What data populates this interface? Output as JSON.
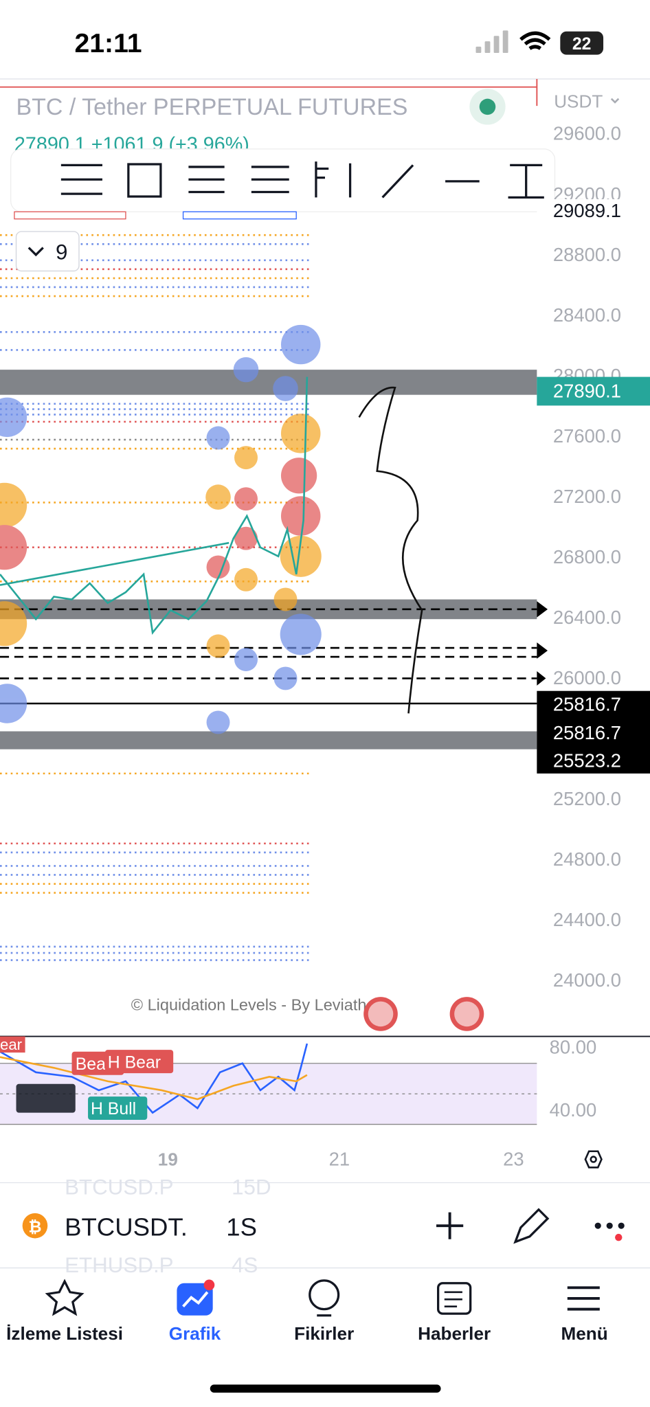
{
  "status_bar": {
    "time": "21:11",
    "battery": "22"
  },
  "header": {
    "title": "BTC / Tether PERPETUAL FUTURES",
    "quote": "27890.1 +1061.9 (+3.96%)",
    "currency": "USDT",
    "indicator_count": "9"
  },
  "price_axis": [
    {
      "value": 29600,
      "label": "29600.0"
    },
    {
      "value": 29200,
      "label": "29200.0"
    },
    {
      "value": 28800,
      "label": "28800.0"
    },
    {
      "value": 28400,
      "label": "28400.0"
    },
    {
      "value": 28000,
      "label": "28000.0"
    },
    {
      "value": 27600,
      "label": "27600.0"
    },
    {
      "value": 27200,
      "label": "27200.0"
    },
    {
      "value": 26800,
      "label": "26800.0"
    },
    {
      "value": 26400,
      "label": "26400.0"
    },
    {
      "value": 26000,
      "label": "26000.0"
    },
    {
      "value": 25200,
      "label": "25200.0"
    },
    {
      "value": 24800,
      "label": "24800.0"
    },
    {
      "value": 24400,
      "label": "24400.0"
    },
    {
      "value": 24000,
      "label": "24000.0"
    }
  ],
  "price_tags": [
    "29089.1",
    "27890.1",
    "25816.7",
    "25816.7",
    "25523.2"
  ],
  "watermark": "© Liquidation Levels - By Leviathan",
  "rsi": {
    "axis": [
      "80.00",
      "40.00"
    ],
    "labels": [
      "ear",
      "Bear",
      "H Bear",
      "H Bull"
    ]
  },
  "time_axis": [
    "19",
    "21",
    "23"
  ],
  "symbol_bar": {
    "symbol": "BTCUSDT.",
    "interval": "1S",
    "prev_symbol": "BTCUSD.P",
    "prev_interval": "15D",
    "next_symbol": "ETHUSD.P",
    "next_interval": "4S"
  },
  "nav": [
    "İzleme Listesi",
    "Grafik",
    "Fikirler",
    "Haberler",
    "Menü"
  ]
}
